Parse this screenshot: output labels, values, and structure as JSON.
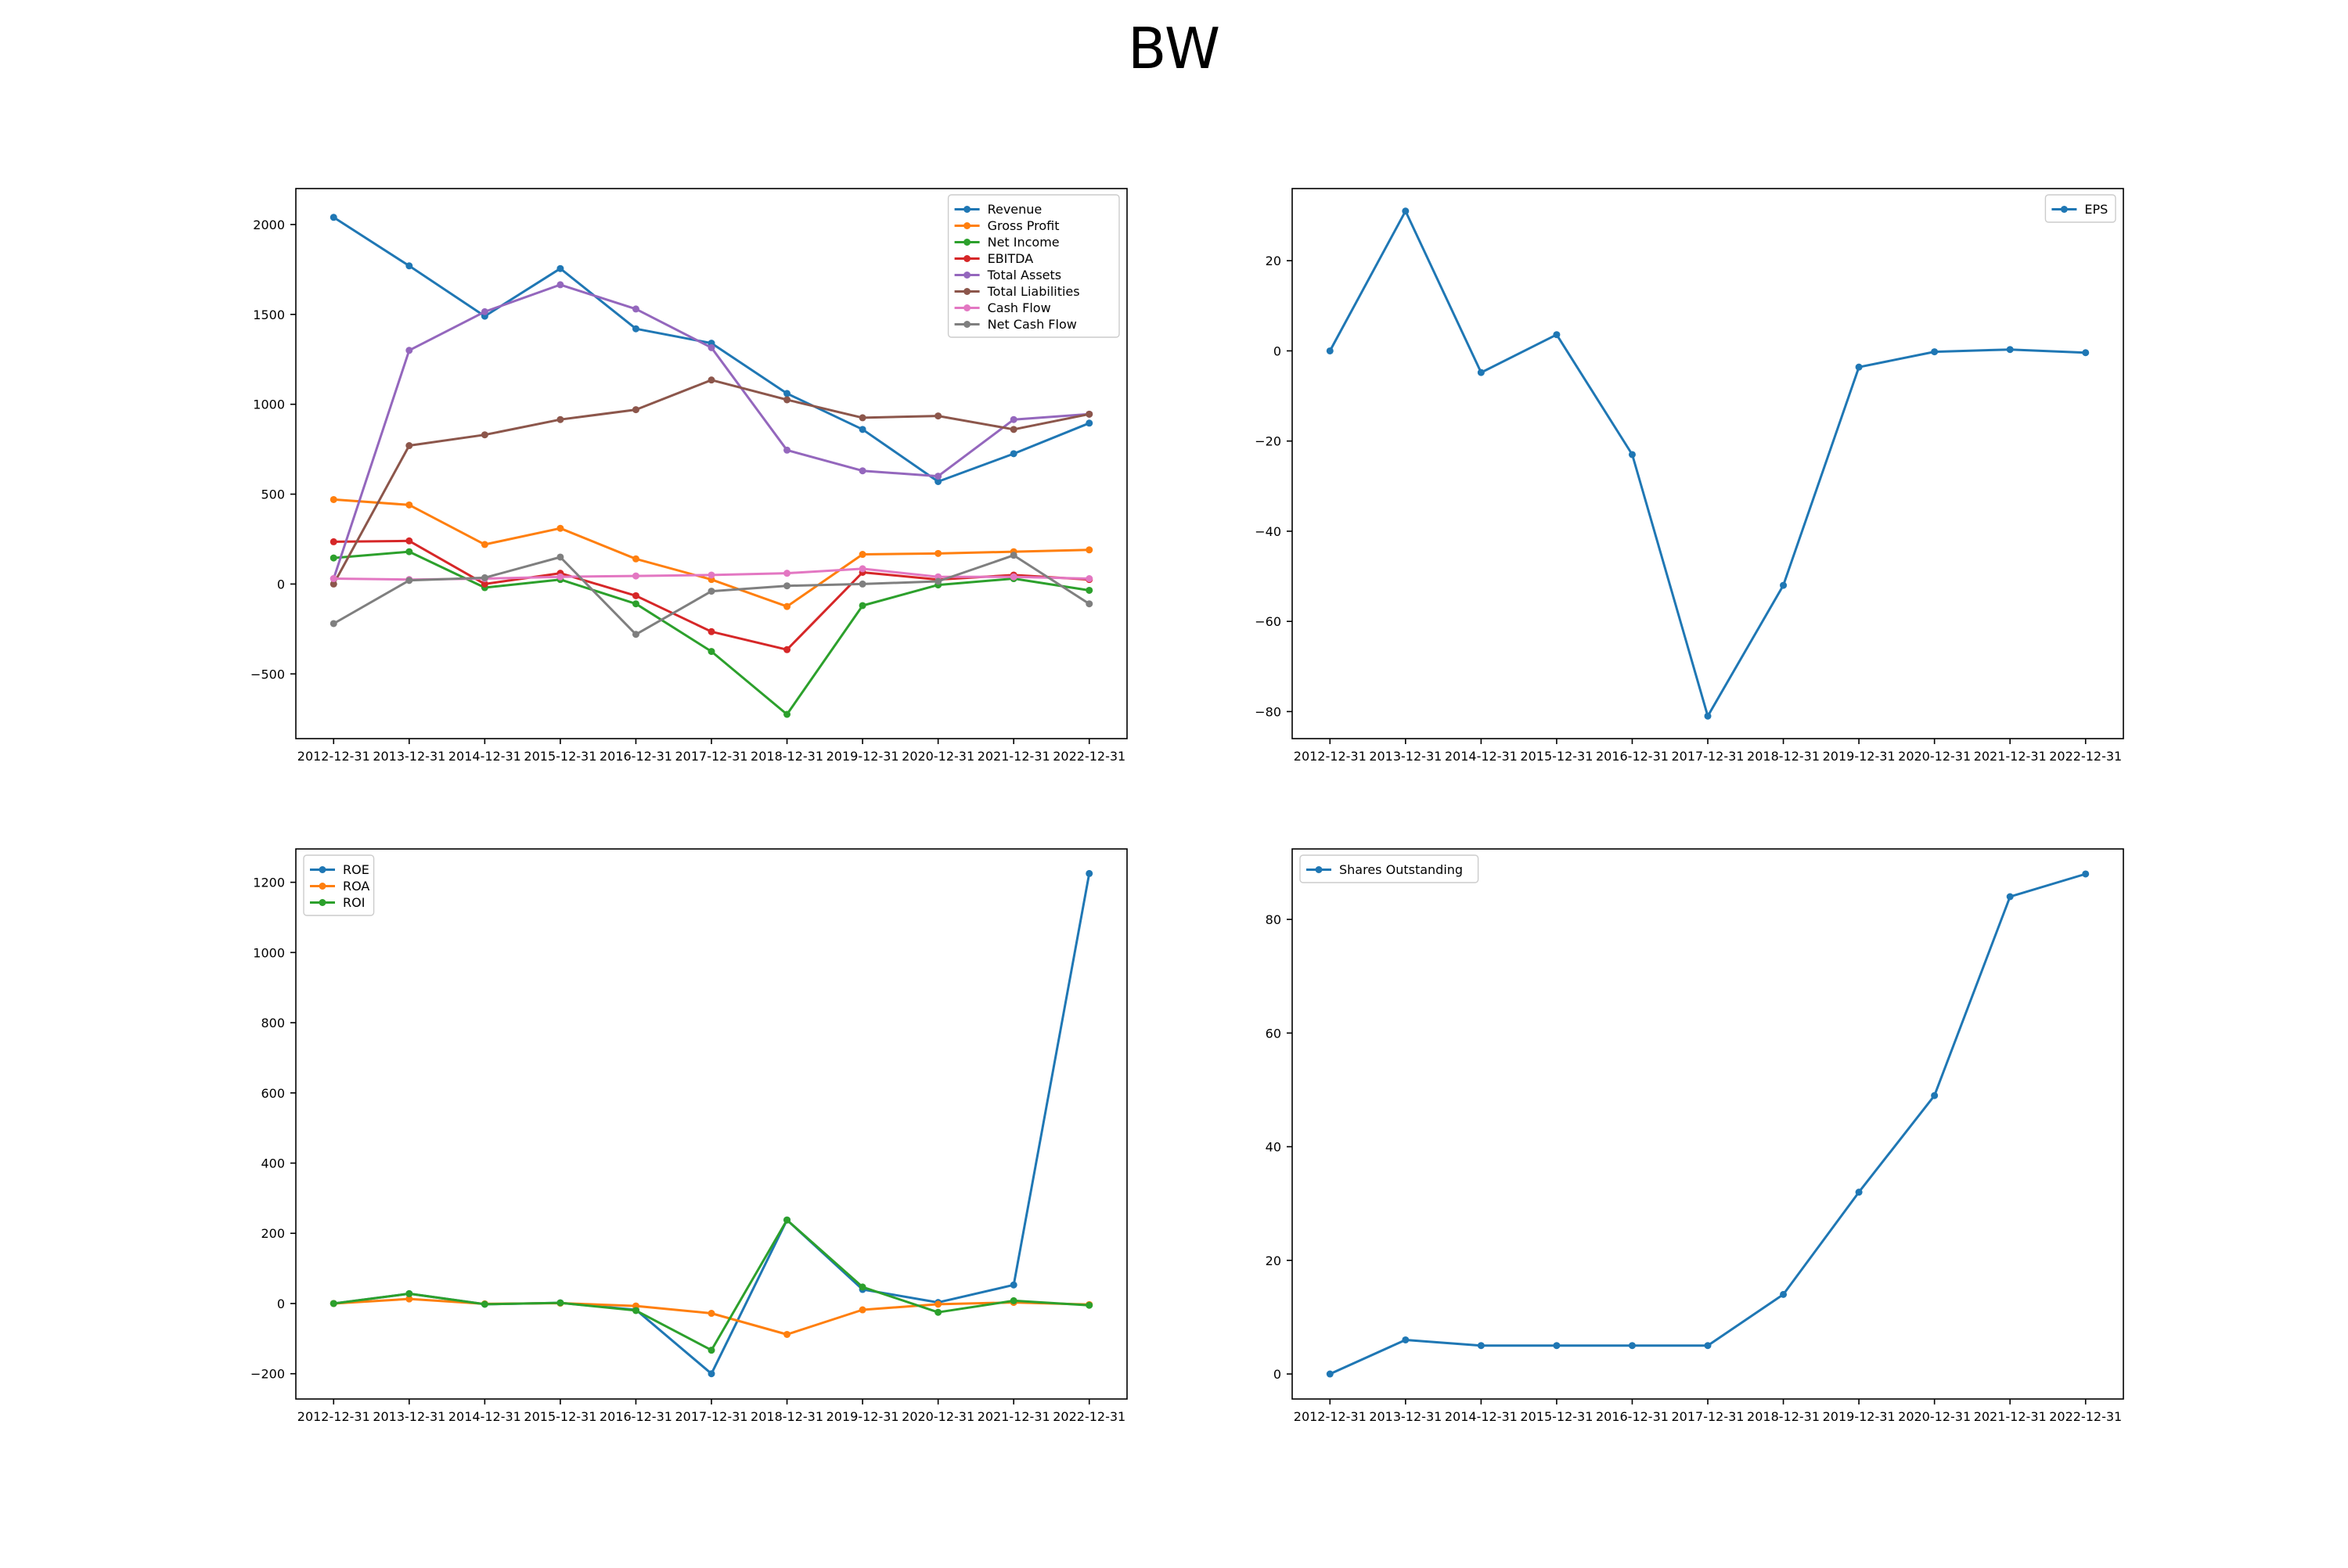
{
  "figure": {
    "title": "BW"
  },
  "chart_data": [
    {
      "type": "line",
      "x": [
        "2012-12-31",
        "2013-12-31",
        "2014-12-31",
        "2015-12-31",
        "2016-12-31",
        "2017-12-31",
        "2018-12-31",
        "2019-12-31",
        "2020-12-31",
        "2021-12-31",
        "2022-12-31"
      ],
      "ylim": [
        -860,
        2200
      ],
      "yticks": [
        -500,
        0,
        500,
        1000,
        1500,
        2000
      ],
      "legend": "top-right",
      "series": [
        {
          "name": "Revenue",
          "color": "#1f77b4",
          "values": [
            2040,
            1770,
            1490,
            1755,
            1420,
            1340,
            1060,
            860,
            570,
            725,
            895
          ]
        },
        {
          "name": "Gross Profit",
          "color": "#ff7f0e",
          "values": [
            470,
            440,
            220,
            310,
            140,
            25,
            -125,
            165,
            170,
            180,
            190
          ]
        },
        {
          "name": "Net Income",
          "color": "#2ca02c",
          "values": [
            145,
            180,
            -20,
            25,
            -110,
            -375,
            -725,
            -120,
            -5,
            30,
            -35
          ]
        },
        {
          "name": "EBITDA",
          "color": "#d62728",
          "values": [
            235,
            240,
            0,
            60,
            -65,
            -265,
            -365,
            65,
            25,
            50,
            25
          ]
        },
        {
          "name": "Total Assets",
          "color": "#9467bd",
          "values": [
            30,
            1300,
            1515,
            1665,
            1530,
            1315,
            745,
            630,
            600,
            915,
            945
          ]
        },
        {
          "name": "Total Liabilities",
          "color": "#8c564b",
          "values": [
            0,
            770,
            830,
            915,
            970,
            1135,
            1025,
            925,
            935,
            860,
            945
          ]
        },
        {
          "name": "Cash Flow",
          "color": "#e377c2",
          "values": [
            30,
            25,
            30,
            40,
            45,
            50,
            60,
            85,
            40,
            40,
            30
          ]
        },
        {
          "name": "Net Cash Flow",
          "color": "#7f7f7f",
          "values": [
            -220,
            20,
            35,
            150,
            -280,
            -40,
            -10,
            0,
            15,
            160,
            -110
          ]
        }
      ]
    },
    {
      "type": "line",
      "x": [
        "2012-12-31",
        "2013-12-31",
        "2014-12-31",
        "2015-12-31",
        "2016-12-31",
        "2017-12-31",
        "2018-12-31",
        "2019-12-31",
        "2020-12-31",
        "2021-12-31",
        "2022-12-31"
      ],
      "ylim": [
        -86,
        36
      ],
      "yticks": [
        -80,
        -60,
        -40,
        -20,
        0,
        20
      ],
      "legend": "top-right",
      "series": [
        {
          "name": "EPS",
          "color": "#1f77b4",
          "values": [
            0,
            31,
            -4.8,
            3.6,
            -23,
            -81,
            -52,
            -3.6,
            -0.2,
            0.3,
            -0.4
          ]
        }
      ]
    },
    {
      "type": "line",
      "x": [
        "2012-12-31",
        "2013-12-31",
        "2014-12-31",
        "2015-12-31",
        "2016-12-31",
        "2017-12-31",
        "2018-12-31",
        "2019-12-31",
        "2020-12-31",
        "2021-12-31",
        "2022-12-31"
      ],
      "ylim": [
        -272,
        1295
      ],
      "yticks": [
        -200,
        0,
        200,
        400,
        600,
        800,
        1000,
        1200
      ],
      "legend": "top-left",
      "series": [
        {
          "name": "ROE",
          "color": "#1f77b4",
          "values": [
            0,
            28,
            -2,
            2,
            -18,
            -200,
            238,
            40,
            3,
            53,
            1225
          ]
        },
        {
          "name": "ROA",
          "color": "#ff7f0e",
          "values": [
            0,
            13,
            -1,
            1,
            -7,
            -28,
            -88,
            -18,
            -2,
            3,
            -3
          ]
        },
        {
          "name": "ROI",
          "color": "#2ca02c",
          "values": [
            0,
            28,
            -2,
            2,
            -20,
            -133,
            238,
            47,
            -25,
            8,
            -5
          ]
        }
      ]
    },
    {
      "type": "line",
      "x": [
        "2012-12-31",
        "2013-12-31",
        "2014-12-31",
        "2015-12-31",
        "2016-12-31",
        "2017-12-31",
        "2018-12-31",
        "2019-12-31",
        "2020-12-31",
        "2021-12-31",
        "2022-12-31"
      ],
      "ylim": [
        -4.4,
        92.4
      ],
      "yticks": [
        0,
        20,
        40,
        60,
        80
      ],
      "legend": "top-left",
      "series": [
        {
          "name": "Shares Outstanding",
          "color": "#1f77b4",
          "values": [
            0,
            6,
            5,
            5,
            5,
            5,
            14,
            32,
            49,
            84,
            88
          ]
        }
      ]
    }
  ]
}
